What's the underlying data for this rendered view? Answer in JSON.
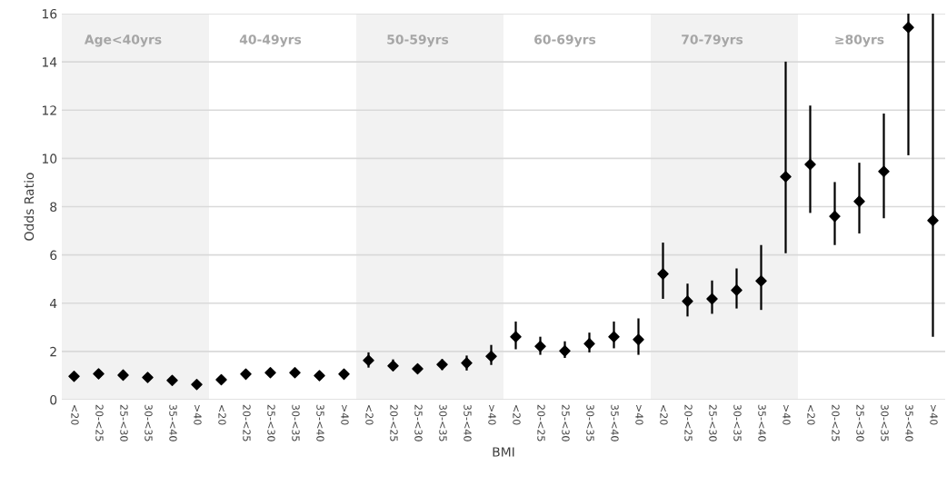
{
  "chart_data": {
    "type": "scatter",
    "xlabel": "BMI",
    "ylabel": "Odds Ratio",
    "categories": [
      "<20",
      "20-<25",
      "25-<30",
      "30-<35",
      "35-<40",
      ">40",
      "<20",
      "20-<25",
      "25-<30",
      "30-<35",
      "35-<40",
      ">40",
      "<20",
      "20-<25",
      "25-<30",
      "30-<35",
      "35-<40",
      ">40",
      "<20",
      "20-<25",
      "25-<30",
      "30-<35",
      "35-<40",
      ">40",
      "<20",
      "20-<25",
      "25-<30",
      "30-<35",
      "35-<40",
      ">40",
      "<20",
      "20-<25",
      "25-<30",
      "30-<35",
      "35-<40",
      ">40"
    ],
    "series": [
      {
        "color": "#000000",
        "values": [
          0.97,
          1.07,
          1.02,
          0.92,
          0.8,
          0.63,
          0.83,
          1.06,
          1.12,
          1.12,
          1.0,
          1.06,
          1.63,
          1.4,
          1.28,
          1.46,
          1.52,
          1.8,
          2.61,
          2.21,
          2.02,
          2.32,
          2.61,
          2.49,
          5.21,
          4.08,
          4.18,
          4.54,
          4.92,
          9.24,
          9.75,
          7.6,
          8.22,
          9.46,
          15.43,
          7.43
        ],
        "errors": [
          null,
          null,
          null,
          null,
          null,
          null,
          null,
          null,
          null,
          null,
          null,
          null,
          [
            1.33,
            1.96
          ],
          [
            1.21,
            1.67
          ],
          [
            1.1,
            1.42
          ],
          [
            1.23,
            1.67
          ],
          [
            1.21,
            1.83
          ],
          [
            1.44,
            2.27
          ],
          [
            2.09,
            3.24
          ],
          [
            1.86,
            2.61
          ],
          [
            1.73,
            2.42
          ],
          [
            1.96,
            2.78
          ],
          [
            2.13,
            3.24
          ],
          [
            1.86,
            3.37
          ],
          [
            4.18,
            6.51
          ],
          [
            3.45,
            4.81
          ],
          [
            3.56,
            4.94
          ],
          [
            3.78,
            5.44
          ],
          [
            3.72,
            6.41
          ],
          [
            6.07,
            14.01
          ],
          [
            7.74,
            12.19
          ],
          [
            6.41,
            9.02
          ],
          [
            6.89,
            9.82
          ],
          [
            7.52,
            11.86
          ],
          [
            10.13,
            16
          ],
          [
            2.61,
            16
          ]
        ]
      }
    ],
    "marker": "diamond",
    "ylim": [
      0,
      16
    ],
    "yticks": [
      0,
      2,
      4,
      6,
      8,
      10,
      12,
      14,
      16
    ],
    "grid": "y",
    "legend": false,
    "annotations": [
      "Age<40yrs",
      "40-49yrs",
      "50-59yrs",
      "60-69yrs",
      "70-79yrs",
      "≥80yrs"
    ]
  }
}
